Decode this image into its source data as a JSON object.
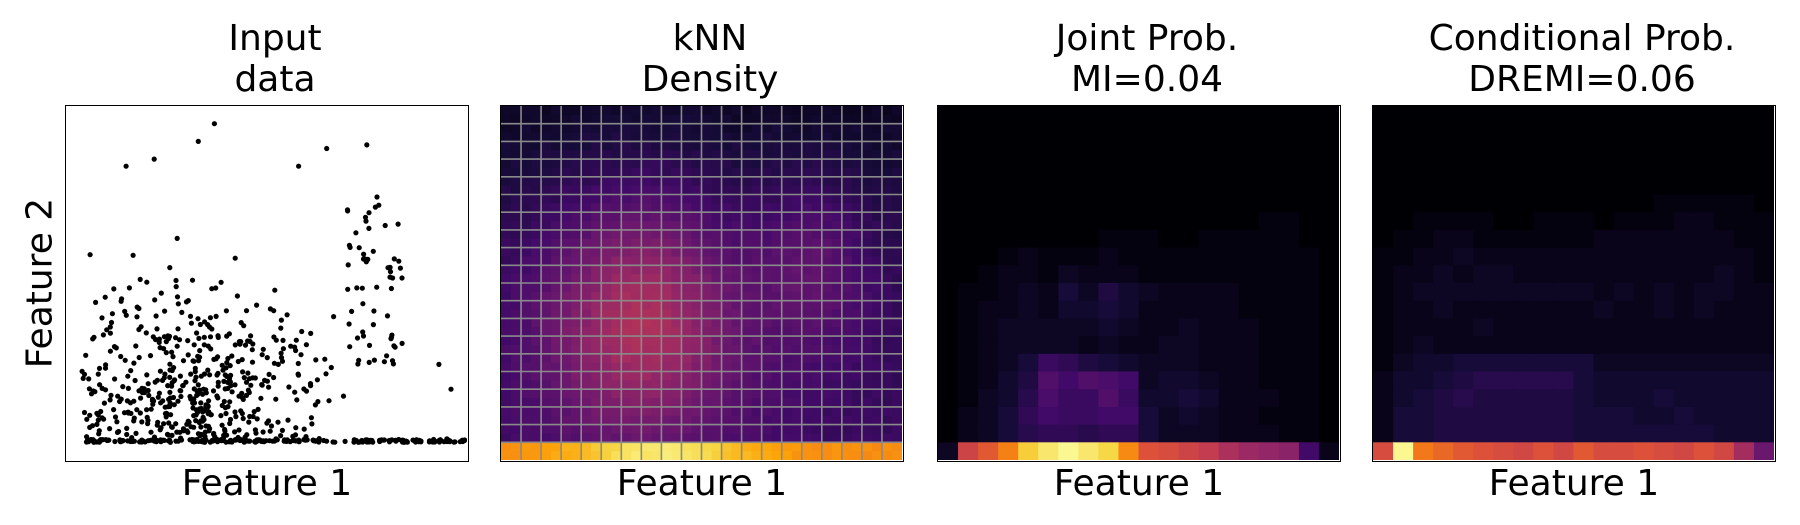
{
  "chart_data": [
    {
      "type": "scatter",
      "title": [
        "Input",
        "data"
      ],
      "xlabel": "Feature 1",
      "ylabel": "Feature 2",
      "grid": false,
      "description_values": "points mostly near bottom row, denser toward left-center"
    },
    {
      "type": "heatmap",
      "title": [
        "kNN",
        "Density"
      ],
      "xlabel": "Feature 1",
      "colormap": "inferno",
      "grid": true,
      "grid_cells": [
        20,
        20
      ]
    },
    {
      "type": "heatmap",
      "title": [
        "Joint Prob.",
        "MI=0.04"
      ],
      "xlabel": "Feature 1",
      "colormap": "inferno",
      "grid": false,
      "mi": 0.04,
      "rows_top_to_bottom": [
        [
          0,
          0,
          0,
          0,
          0,
          0,
          0,
          0,
          0,
          0,
          0,
          0,
          0,
          0,
          0,
          0,
          0,
          0,
          0,
          0
        ],
        [
          0,
          0,
          0,
          0,
          0,
          0,
          0,
          0,
          0,
          0,
          0,
          0,
          0,
          0,
          0,
          0,
          0,
          0,
          0,
          0
        ],
        [
          0,
          0,
          0,
          0,
          0,
          0,
          0,
          0,
          0,
          0,
          0,
          0,
          0,
          0,
          0,
          0,
          0,
          0,
          0,
          0
        ],
        [
          0,
          0,
          0,
          0,
          0,
          0,
          0,
          0,
          0,
          0,
          0,
          0,
          0,
          0,
          0,
          0,
          0.02,
          0.02,
          0,
          0
        ],
        [
          0,
          0,
          0,
          0,
          0,
          0,
          0,
          0,
          0.02,
          0.02,
          0.02,
          0,
          0,
          0.02,
          0.02,
          0.02,
          0.02,
          0.02,
          0,
          0
        ],
        [
          0,
          0,
          0,
          0.02,
          0.04,
          0.02,
          0.02,
          0.02,
          0.04,
          0.02,
          0.02,
          0.02,
          0.02,
          0.02,
          0.02,
          0.02,
          0.02,
          0.02,
          0.02,
          0
        ],
        [
          0,
          0,
          0.02,
          0.04,
          0.04,
          0.02,
          0.06,
          0.04,
          0.04,
          0.04,
          0.02,
          0.02,
          0.02,
          0.02,
          0.02,
          0.02,
          0.02,
          0.02,
          0.02,
          0
        ],
        [
          0,
          0.02,
          0.02,
          0.04,
          0.06,
          0.04,
          0.1,
          0.06,
          0.12,
          0.08,
          0.06,
          0.04,
          0.04,
          0.04,
          0.04,
          0.02,
          0.02,
          0.02,
          0.02,
          0
        ],
        [
          0,
          0.02,
          0.04,
          0.04,
          0.06,
          0.04,
          0.08,
          0.08,
          0.1,
          0.08,
          0.04,
          0.04,
          0.04,
          0.04,
          0.04,
          0.02,
          0.02,
          0.02,
          0.02,
          0
        ],
        [
          0,
          0.02,
          0.04,
          0.06,
          0.06,
          0.06,
          0.06,
          0.06,
          0.08,
          0.06,
          0.04,
          0.04,
          0.06,
          0.04,
          0.04,
          0.04,
          0.02,
          0.02,
          0.02,
          0
        ],
        [
          0,
          0.02,
          0.04,
          0.06,
          0.06,
          0.06,
          0.06,
          0.04,
          0.06,
          0.04,
          0.04,
          0.06,
          0.06,
          0.04,
          0.04,
          0.04,
          0.02,
          0.02,
          0.02,
          0
        ],
        [
          0,
          0.02,
          0.04,
          0.06,
          0.1,
          0.18,
          0.16,
          0.12,
          0.1,
          0.08,
          0.06,
          0.06,
          0.06,
          0.04,
          0.04,
          0.04,
          0.02,
          0.02,
          0.02,
          0
        ],
        [
          0,
          0.02,
          0.04,
          0.08,
          0.12,
          0.24,
          0.2,
          0.24,
          0.22,
          0.2,
          0.06,
          0.08,
          0.08,
          0.06,
          0.04,
          0.04,
          0.02,
          0.02,
          0.02,
          0
        ],
        [
          0,
          0.02,
          0.06,
          0.08,
          0.14,
          0.22,
          0.18,
          0.18,
          0.24,
          0.18,
          0.08,
          0.08,
          0.1,
          0.08,
          0.04,
          0.04,
          0.04,
          0.02,
          0.02,
          0
        ],
        [
          0,
          0.04,
          0.06,
          0.1,
          0.16,
          0.2,
          0.18,
          0.18,
          0.2,
          0.2,
          0.1,
          0.06,
          0.08,
          0.06,
          0.04,
          0.04,
          0.02,
          0.02,
          0.02,
          0
        ],
        [
          0,
          0.04,
          0.06,
          0.1,
          0.14,
          0.16,
          0.16,
          0.14,
          0.16,
          0.16,
          0.1,
          0.06,
          0.06,
          0.06,
          0.04,
          0.04,
          0.04,
          0.02,
          0.02,
          0
        ],
        [
          0.06,
          0.55,
          0.62,
          0.72,
          0.88,
          0.94,
          0.98,
          0.94,
          0.9,
          0.74,
          0.6,
          0.58,
          0.55,
          0.52,
          0.46,
          0.42,
          0.4,
          0.38,
          0.2,
          0.04
        ]
      ]
    },
    {
      "type": "heatmap",
      "title": [
        "Conditional Prob.",
        "DREMI=0.06"
      ],
      "xlabel": "Feature 1",
      "colormap": "inferno",
      "grid": false,
      "dremi": 0.06,
      "rows_top_to_bottom": [
        [
          0,
          0,
          0,
          0,
          0,
          0,
          0,
          0,
          0,
          0,
          0,
          0,
          0,
          0,
          0,
          0,
          0,
          0,
          0,
          0
        ],
        [
          0,
          0,
          0,
          0,
          0,
          0,
          0,
          0,
          0,
          0,
          0,
          0,
          0,
          0,
          0,
          0,
          0,
          0,
          0,
          0
        ],
        [
          0,
          0,
          0,
          0,
          0,
          0,
          0,
          0,
          0,
          0,
          0,
          0,
          0,
          0,
          0.02,
          0.02,
          0.02,
          0.02,
          0.02,
          0
        ],
        [
          0,
          0,
          0.02,
          0.02,
          0.02,
          0.02,
          0,
          0,
          0.02,
          0.02,
          0.02,
          0,
          0.02,
          0.02,
          0.02,
          0.04,
          0.04,
          0.02,
          0.02,
          0.02
        ],
        [
          0,
          0.02,
          0.02,
          0.04,
          0.04,
          0.02,
          0.02,
          0.02,
          0.02,
          0.02,
          0.02,
          0.04,
          0.04,
          0.04,
          0.04,
          0.04,
          0.04,
          0.04,
          0.02,
          0.02
        ],
        [
          0.02,
          0.02,
          0.04,
          0.04,
          0.06,
          0.04,
          0.04,
          0.04,
          0.04,
          0.04,
          0.04,
          0.04,
          0.04,
          0.04,
          0.04,
          0.04,
          0.04,
          0.04,
          0.04,
          0.02
        ],
        [
          0.02,
          0.04,
          0.04,
          0.06,
          0.04,
          0.06,
          0.06,
          0.04,
          0.04,
          0.04,
          0.04,
          0.04,
          0.04,
          0.04,
          0.04,
          0.04,
          0.04,
          0.06,
          0.04,
          0.02
        ],
        [
          0.02,
          0.04,
          0.06,
          0.06,
          0.06,
          0.06,
          0.06,
          0.06,
          0.06,
          0.06,
          0.06,
          0.04,
          0.06,
          0.04,
          0.06,
          0.04,
          0.06,
          0.06,
          0.04,
          0.04
        ],
        [
          0.02,
          0.04,
          0.04,
          0.06,
          0.04,
          0.04,
          0.04,
          0.04,
          0.04,
          0.04,
          0.04,
          0.06,
          0.04,
          0.04,
          0.06,
          0.04,
          0.06,
          0.04,
          0.04,
          0.04
        ],
        [
          0.02,
          0.04,
          0.04,
          0.04,
          0.04,
          0.06,
          0.04,
          0.04,
          0.04,
          0.04,
          0.04,
          0.04,
          0.04,
          0.04,
          0.04,
          0.04,
          0.04,
          0.04,
          0.04,
          0.04
        ],
        [
          0.02,
          0.04,
          0.06,
          0.04,
          0.04,
          0.04,
          0.04,
          0.04,
          0.04,
          0.04,
          0.04,
          0.04,
          0.04,
          0.04,
          0.04,
          0.04,
          0.04,
          0.04,
          0.04,
          0.04
        ],
        [
          0.02,
          0.06,
          0.08,
          0.08,
          0.1,
          0.1,
          0.1,
          0.1,
          0.1,
          0.1,
          0.1,
          0.06,
          0.06,
          0.06,
          0.06,
          0.06,
          0.06,
          0.06,
          0.06,
          0.06
        ],
        [
          0.04,
          0.08,
          0.08,
          0.1,
          0.12,
          0.14,
          0.14,
          0.14,
          0.14,
          0.14,
          0.1,
          0.08,
          0.08,
          0.08,
          0.08,
          0.08,
          0.08,
          0.08,
          0.08,
          0.08
        ],
        [
          0.04,
          0.08,
          0.1,
          0.12,
          0.14,
          0.12,
          0.12,
          0.12,
          0.12,
          0.12,
          0.1,
          0.08,
          0.08,
          0.08,
          0.1,
          0.08,
          0.08,
          0.08,
          0.08,
          0.08
        ],
        [
          0.04,
          0.1,
          0.1,
          0.12,
          0.12,
          0.12,
          0.12,
          0.12,
          0.12,
          0.12,
          0.1,
          0.1,
          0.1,
          0.08,
          0.08,
          0.1,
          0.08,
          0.08,
          0.08,
          0.08
        ],
        [
          0.04,
          0.1,
          0.1,
          0.12,
          0.12,
          0.12,
          0.12,
          0.12,
          0.12,
          0.12,
          0.1,
          0.1,
          0.1,
          0.1,
          0.1,
          0.1,
          0.1,
          0.08,
          0.08,
          0.08
        ],
        [
          0.58,
          0.98,
          0.7,
          0.66,
          0.62,
          0.6,
          0.58,
          0.56,
          0.6,
          0.56,
          0.62,
          0.58,
          0.58,
          0.6,
          0.58,
          0.56,
          0.6,
          0.56,
          0.44,
          0.3
        ]
      ]
    }
  ]
}
